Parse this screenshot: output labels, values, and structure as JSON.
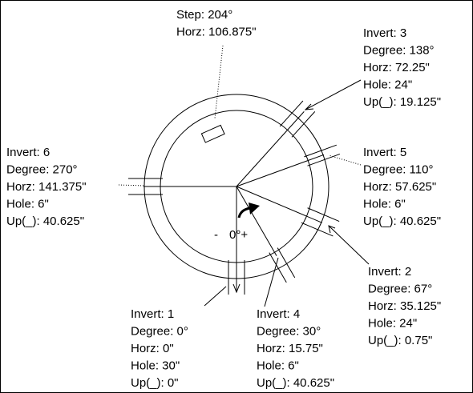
{
  "step": {
    "lines": [
      "Step: 204°",
      "Horz: 106.875\""
    ]
  },
  "inverts": [
    {
      "lines": [
        "Invert: 1",
        "Degree: 0°",
        "Horz: 0\"",
        "Hole: 30\"",
        "Up(_): 0\""
      ]
    },
    {
      "lines": [
        "Invert: 4",
        "Degree: 30°",
        "Horz: 15.75\"",
        "Hole: 6\"",
        "Up(_): 40.625\""
      ]
    },
    {
      "lines": [
        "Invert: 2",
        "Degree: 67°",
        "Horz: 35.125\"",
        "Hole: 24\"",
        "Up(_): 0.75\""
      ]
    },
    {
      "lines": [
        "Invert: 5",
        "Degree: 110°",
        "Horz: 57.625\"",
        "Hole: 6\"",
        "Up(_): 40.625\""
      ]
    },
    {
      "lines": [
        "Invert: 3",
        "Degree: 138°",
        "Horz: 72.25\"",
        "Hole: 24\"",
        "Up(_): 19.125\""
      ]
    },
    {
      "lines": [
        "Invert: 6",
        "Degree: 270°",
        "Horz: 141.375\"",
        "Hole: 6\"",
        "Up(_): 40.625\""
      ]
    }
  ],
  "center": {
    "minus": "-",
    "zero": "0°+"
  }
}
